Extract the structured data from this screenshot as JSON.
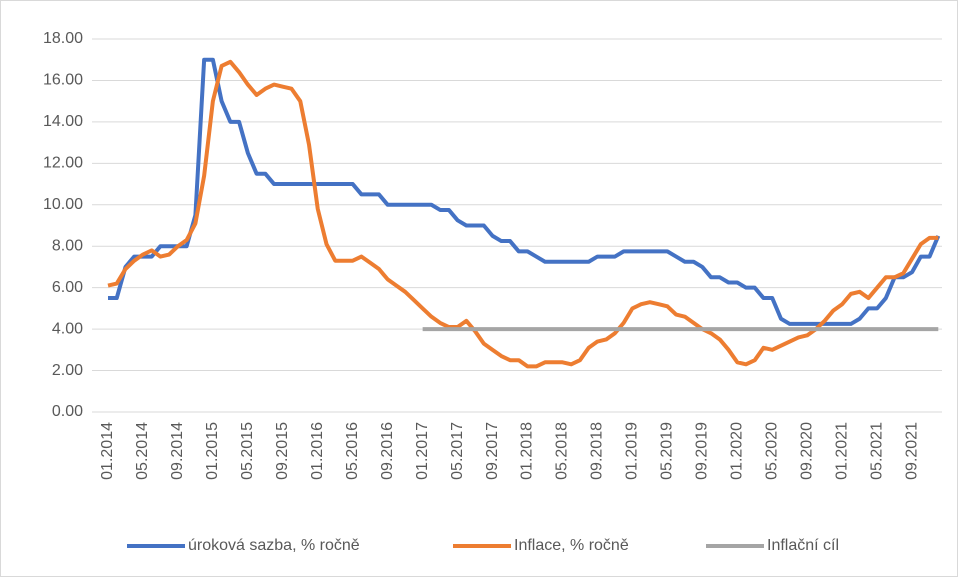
{
  "chart_data": {
    "type": "line",
    "categories": [
      "01.2014",
      null,
      null,
      null,
      "05.2014",
      null,
      null,
      null,
      "09.2014",
      null,
      null,
      null,
      "01.2015",
      null,
      null,
      null,
      "05.2015",
      null,
      null,
      null,
      "09.2015",
      null,
      null,
      null,
      "01.2016",
      null,
      null,
      null,
      "05.2016",
      null,
      null,
      null,
      "09.2016",
      null,
      null,
      null,
      "01.2017",
      null,
      null,
      null,
      "05.2017",
      null,
      null,
      null,
      "09.2017",
      null,
      null,
      null,
      "01.2018",
      null,
      null,
      null,
      "05.2018",
      null,
      null,
      null,
      "09.2018",
      null,
      null,
      null,
      "01.2019",
      null,
      null,
      null,
      "05.2019",
      null,
      null,
      null,
      "09.2019",
      null,
      null,
      null,
      "01.2020",
      null,
      null,
      null,
      "05.2020",
      null,
      null,
      null,
      "09.2020",
      null,
      null,
      null,
      "01.2021",
      null,
      null,
      null,
      "05.2021",
      null,
      null,
      null,
      "09.2021",
      null,
      null,
      null
    ],
    "series": [
      {
        "name": "úroková sazba, % ročně",
        "color": "#4472c4",
        "values": [
          5.5,
          5.5,
          7.0,
          7.5,
          7.5,
          7.5,
          8.0,
          8.0,
          8.0,
          8.0,
          9.5,
          17,
          17,
          15,
          14,
          14,
          12.5,
          11.5,
          11.5,
          11,
          11,
          11,
          11,
          11,
          11,
          11,
          11,
          11,
          11,
          10.5,
          10.5,
          10.5,
          10,
          10,
          10,
          10,
          10,
          10,
          9.75,
          9.75,
          9.25,
          9,
          9,
          9,
          8.5,
          8.25,
          8.25,
          7.75,
          7.75,
          7.5,
          7.25,
          7.25,
          7.25,
          7.25,
          7.25,
          7.25,
          7.5,
          7.5,
          7.5,
          7.75,
          7.75,
          7.75,
          7.75,
          7.75,
          7.75,
          7.5,
          7.25,
          7.25,
          7,
          6.5,
          6.5,
          6.25,
          6.25,
          6,
          6,
          5.5,
          5.5,
          4.5,
          4.25,
          4.25,
          4.25,
          4.25,
          4.25,
          4.25,
          4.25,
          4.25,
          4.5,
          5,
          5,
          5.5,
          6.5,
          6.5,
          6.75,
          7.5,
          7.5,
          8.5
        ]
      },
      {
        "name": "Inflace, % ročně",
        "color": "#ed7d31",
        "values": [
          6.1,
          6.2,
          6.9,
          7.3,
          7.6,
          7.8,
          7.5,
          7.6,
          8.0,
          8.3,
          9.1,
          11.4,
          15.0,
          16.7,
          16.9,
          16.4,
          15.8,
          15.3,
          15.6,
          15.8,
          15.7,
          15.6,
          15.0,
          12.9,
          9.8,
          8.1,
          7.3,
          7.3,
          7.3,
          7.5,
          7.2,
          6.9,
          6.4,
          6.1,
          5.8,
          5.4,
          5.0,
          4.6,
          4.3,
          4.1,
          4.1,
          4.4,
          3.9,
          3.3,
          3.0,
          2.7,
          2.5,
          2.5,
          2.2,
          2.2,
          2.4,
          2.4,
          2.4,
          2.3,
          2.5,
          3.1,
          3.4,
          3.5,
          3.8,
          4.3,
          5.0,
          5.2,
          5.3,
          5.2,
          5.1,
          4.7,
          4.6,
          4.3,
          4.0,
          3.8,
          3.5,
          3.0,
          2.4,
          2.3,
          2.5,
          3.1,
          3.0,
          3.2,
          3.4,
          3.6,
          3.7,
          4.0,
          4.4,
          4.9,
          5.2,
          5.7,
          5.8,
          5.5,
          6.0,
          6.5,
          6.5,
          6.7,
          7.4,
          8.1,
          8.4,
          8.4
        ]
      },
      {
        "name": "Inflační cíl",
        "color": "#a5a5a5",
        "values": [
          null,
          null,
          null,
          null,
          null,
          null,
          null,
          null,
          null,
          null,
          null,
          null,
          null,
          null,
          null,
          null,
          null,
          null,
          null,
          null,
          null,
          null,
          null,
          null,
          null,
          null,
          null,
          null,
          null,
          null,
          null,
          null,
          null,
          null,
          null,
          null,
          4,
          4,
          4,
          4,
          4,
          4,
          4,
          4,
          4,
          4,
          4,
          4,
          4,
          4,
          4,
          4,
          4,
          4,
          4,
          4,
          4,
          4,
          4,
          4,
          4,
          4,
          4,
          4,
          4,
          4,
          4,
          4,
          4,
          4,
          4,
          4,
          4,
          4,
          4,
          4,
          4,
          4,
          4,
          4,
          4,
          4,
          4,
          4,
          4,
          4,
          4,
          4,
          4,
          4,
          4,
          4,
          4,
          4,
          4,
          4
        ]
      }
    ],
    "ylim": [
      0,
      18
    ],
    "yticks": [
      {
        "value": 0,
        "label": "0.00"
      },
      {
        "value": 2,
        "label": "2.00"
      },
      {
        "value": 4,
        "label": "4.00"
      },
      {
        "value": 6,
        "label": "6.00"
      },
      {
        "value": 8,
        "label": "8.00"
      },
      {
        "value": 10,
        "label": "10.00"
      },
      {
        "value": 12,
        "label": "12.00"
      },
      {
        "value": 14,
        "label": "14.00"
      },
      {
        "value": 16,
        "label": "16.00"
      },
      {
        "value": 18,
        "label": "18.00"
      }
    ],
    "grid": true,
    "legend": "bottom"
  }
}
